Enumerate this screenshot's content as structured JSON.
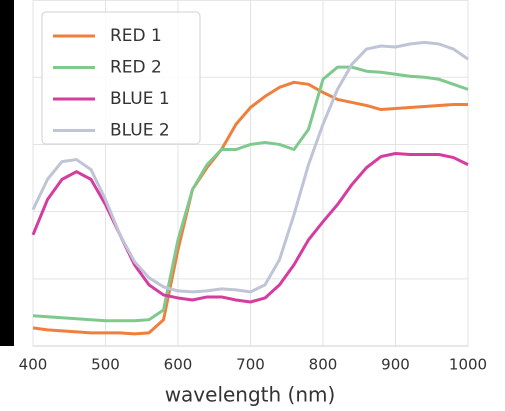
{
  "chart_data": {
    "type": "line",
    "x_label": "wavelength (nm)",
    "x": [
      400,
      420,
      440,
      460,
      480,
      500,
      520,
      540,
      560,
      580,
      600,
      620,
      640,
      660,
      680,
      700,
      720,
      740,
      760,
      780,
      800,
      820,
      840,
      860,
      880,
      900,
      920,
      940,
      960,
      980,
      1000
    ],
    "xlim": [
      400,
      1000
    ],
    "xticks": [
      400,
      500,
      600,
      700,
      800,
      900,
      1000
    ],
    "ylim": [
      0,
      1.03
    ],
    "yticks": [
      0.2,
      0.4,
      0.6,
      0.8
    ],
    "grid": true,
    "legend": "upper left",
    "series": [
      {
        "name": "RED 1",
        "color": "#f07f3c",
        "values": [
          0.054,
          0.048,
          0.045,
          0.042,
          0.039,
          0.039,
          0.039,
          0.036,
          0.039,
          0.078,
          0.287,
          0.466,
          0.531,
          0.585,
          0.66,
          0.71,
          0.743,
          0.77,
          0.785,
          0.779,
          0.755,
          0.734,
          0.725,
          0.716,
          0.704,
          0.707,
          0.71,
          0.713,
          0.716,
          0.719,
          0.719
        ]
      },
      {
        "name": "RED 2",
        "color": "#7fc98e",
        "values": [
          0.09,
          0.087,
          0.084,
          0.081,
          0.078,
          0.075,
          0.075,
          0.075,
          0.078,
          0.107,
          0.316,
          0.466,
          0.54,
          0.585,
          0.585,
          0.6,
          0.606,
          0.6,
          0.585,
          0.645,
          0.794,
          0.83,
          0.83,
          0.818,
          0.815,
          0.809,
          0.803,
          0.8,
          0.794,
          0.779,
          0.764
        ]
      },
      {
        "name": "BLUE 1",
        "color": "#d63ca0",
        "values": [
          0.331,
          0.436,
          0.496,
          0.519,
          0.496,
          0.421,
          0.331,
          0.242,
          0.182,
          0.152,
          0.143,
          0.137,
          0.146,
          0.146,
          0.137,
          0.131,
          0.143,
          0.182,
          0.242,
          0.316,
          0.37,
          0.421,
          0.481,
          0.531,
          0.564,
          0.573,
          0.57,
          0.57,
          0.57,
          0.561,
          0.54
        ]
      },
      {
        "name": "BLUE 2",
        "color": "#bfc4d6",
        "values": [
          0.406,
          0.496,
          0.549,
          0.555,
          0.525,
          0.436,
          0.331,
          0.251,
          0.203,
          0.176,
          0.164,
          0.161,
          0.164,
          0.17,
          0.167,
          0.161,
          0.182,
          0.257,
          0.391,
          0.54,
          0.66,
          0.764,
          0.839,
          0.884,
          0.893,
          0.89,
          0.899,
          0.904,
          0.899,
          0.884,
          0.854
        ]
      }
    ]
  }
}
